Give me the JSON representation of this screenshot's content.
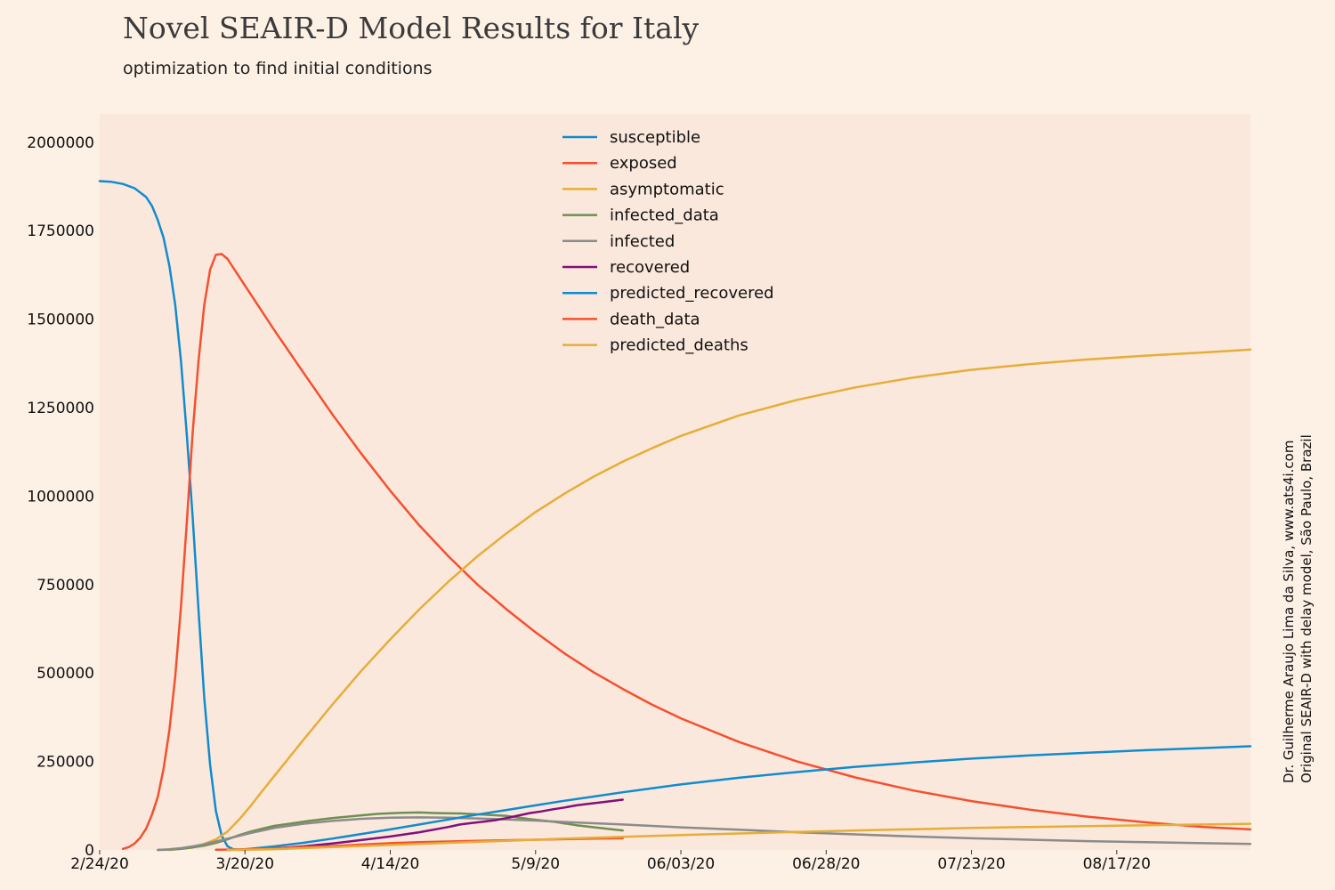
{
  "header": {
    "title": "Novel SEAIR-D Model Results for Italy",
    "subtitle": "optimization to find initial conditions"
  },
  "credit": {
    "line1": "Dr. Guilherme Araujo Lima da Silva, www.ats4i.com",
    "line2": "Original SEAIR-D with delay model, São Paulo, Brazil"
  },
  "chart_data": {
    "type": "line",
    "ylim": [
      0,
      2080000
    ],
    "xlim": [
      0,
      198
    ],
    "xstart": "2/24/20",
    "y_ticks": [
      0,
      250000,
      500000,
      750000,
      1000000,
      1250000,
      1500000,
      1750000,
      2000000
    ],
    "x_ticks": [
      {
        "x": 0,
        "label": "2/24/20"
      },
      {
        "x": 25,
        "label": "3/20/20"
      },
      {
        "x": 50,
        "label": "4/14/20"
      },
      {
        "x": 75,
        "label": "5/9/20"
      },
      {
        "x": 100,
        "label": "06/03/20"
      },
      {
        "x": 125,
        "label": "06/28/20"
      },
      {
        "x": 150,
        "label": "07/23/20"
      },
      {
        "x": 175,
        "label": "08/17/20"
      }
    ],
    "legend_position": "top-center",
    "grid": false,
    "plot_background": "#fbe8dc",
    "series": [
      {
        "name": "susceptible",
        "color": "#118bcf",
        "x": [
          0,
          2,
          4,
          6,
          8,
          9,
          10,
          11,
          12,
          13,
          14,
          15,
          16,
          17,
          18,
          19,
          20,
          21,
          22,
          23,
          24,
          25
        ],
        "y": [
          1890000,
          1888000,
          1882000,
          1870000,
          1845000,
          1820000,
          1780000,
          1730000,
          1650000,
          1540000,
          1380000,
          1170000,
          940000,
          680000,
          430000,
          240000,
          110000,
          40000,
          10000,
          2000,
          400,
          100
        ]
      },
      {
        "name": "exposed",
        "color": "#f4502f",
        "x": [
          4,
          5,
          6,
          7,
          8,
          9,
          10,
          11,
          12,
          13,
          14,
          15,
          16,
          17,
          18,
          19,
          20,
          21,
          22,
          23,
          24,
          27,
          30,
          35,
          40,
          45,
          50,
          55,
          60,
          65,
          70,
          75,
          80,
          85,
          90,
          95,
          100,
          110,
          120,
          130,
          140,
          150,
          160,
          170,
          180,
          190,
          198
        ],
        "y": [
          3000,
          8000,
          18000,
          35000,
          60000,
          100000,
          150000,
          230000,
          340000,
          490000,
          690000,
          930000,
          1180000,
          1380000,
          1540000,
          1640000,
          1682000,
          1684000,
          1670000,
          1645000,
          1620000,
          1545000,
          1470000,
          1350000,
          1232000,
          1120000,
          1015000,
          917000,
          830000,
          750000,
          680000,
          615000,
          555000,
          502000,
          455000,
          411000,
          372000,
          305000,
          250000,
          205000,
          168000,
          138000,
          114000,
          94000,
          78000,
          65000,
          58000
        ]
      },
      {
        "name": "asymptomatic",
        "color": "#e5ae38",
        "x": [
          12,
          14,
          16,
          18,
          20,
          22,
          24,
          26,
          28,
          30,
          35,
          40,
          45,
          50,
          55,
          60,
          65,
          70,
          75,
          80,
          85,
          90,
          95,
          100,
          110,
          120,
          130,
          140,
          150,
          160,
          170,
          180,
          190,
          198
        ],
        "y": [
          0,
          3000,
          8000,
          17000,
          30000,
          52000,
          86000,
          125000,
          167000,
          208000,
          310000,
          410000,
          506000,
          595000,
          680000,
          758000,
          830000,
          895000,
          955000,
          1007000,
          1055000,
          1097000,
          1135000,
          1170000,
          1228000,
          1272000,
          1307000,
          1335000,
          1357000,
          1373000,
          1386000,
          1397000,
          1406000,
          1414000
        ]
      },
      {
        "name": "infected_data",
        "color": "#6d904f",
        "x": [
          10,
          12,
          14,
          16,
          18,
          20,
          22,
          24,
          26,
          28,
          30,
          33,
          36,
          40,
          44,
          48,
          52,
          55,
          58,
          62,
          66,
          70,
          74,
          78,
          82,
          86,
          90
        ],
        "y": [
          0,
          1000,
          3000,
          7000,
          12000,
          20000,
          30000,
          42000,
          52000,
          60000,
          68000,
          75000,
          82000,
          90000,
          96000,
          102000,
          105000,
          106000,
          104000,
          103000,
          100000,
          96000,
          87000,
          80000,
          70000,
          62000,
          55000
        ]
      },
      {
        "name": "infected",
        "color": "#8b8b8b",
        "x": [
          10,
          12,
          14,
          16,
          18,
          20,
          22,
          24,
          26,
          28,
          30,
          35,
          40,
          45,
          50,
          55,
          60,
          65,
          70,
          75,
          80,
          90,
          100,
          110,
          120,
          130,
          140,
          150,
          160,
          170,
          180,
          190,
          198
        ],
        "y": [
          0,
          2000,
          5000,
          10000,
          16000,
          24000,
          32000,
          40000,
          48000,
          55000,
          62000,
          74000,
          82000,
          88000,
          91000,
          92000,
          91000,
          89000,
          86000,
          83000,
          79000,
          72000,
          64000,
          57000,
          50000,
          44000,
          38000,
          33000,
          29000,
          25000,
          22000,
          19000,
          17000
        ]
      },
      {
        "name": "recovered",
        "color": "#810f7c",
        "x": [
          30,
          35,
          40,
          45,
          50,
          55,
          60,
          62,
          64,
          66,
          68,
          70,
          72,
          74,
          76,
          78,
          80,
          82,
          84,
          86,
          88,
          90
        ],
        "y": [
          4000,
          10000,
          18000,
          28000,
          38000,
          50000,
          65000,
          72000,
          76000,
          80000,
          84000,
          90000,
          97000,
          104000,
          109000,
          115000,
          120000,
          126000,
          130000,
          134000,
          138000,
          142000
        ]
      },
      {
        "name": "predicted_recovered",
        "color": "#118bcf",
        "x": [
          22,
          25,
          30,
          35,
          40,
          45,
          50,
          55,
          60,
          65,
          70,
          75,
          80,
          85,
          90,
          95,
          100,
          110,
          120,
          130,
          140,
          150,
          160,
          170,
          180,
          190,
          198
        ],
        "y": [
          0,
          2000,
          10000,
          20000,
          32000,
          45000,
          58000,
          72000,
          86000,
          100000,
          113000,
          126000,
          139000,
          151000,
          163000,
          174000,
          185000,
          204000,
          220000,
          235000,
          247000,
          258000,
          267000,
          275000,
          282000,
          288000,
          293000
        ]
      },
      {
        "name": "death_data",
        "color": "#f4502f",
        "x": [
          20,
          25,
          30,
          35,
          40,
          45,
          50,
          55,
          60,
          65,
          70,
          75,
          80,
          85,
          90
        ],
        "y": [
          500,
          2000,
          5000,
          8000,
          11000,
          15000,
          19000,
          22000,
          24000,
          26000,
          27500,
          29000,
          30500,
          32000,
          33000
        ]
      },
      {
        "name": "predicted_deaths",
        "color": "#e5ae38",
        "x": [
          22,
          25,
          30,
          35,
          40,
          45,
          50,
          55,
          60,
          65,
          70,
          75,
          80,
          85,
          90,
          95,
          100,
          110,
          120,
          130,
          140,
          150,
          160,
          170,
          180,
          190,
          198
        ],
        "y": [
          0,
          500,
          2000,
          5000,
          8000,
          11000,
          14000,
          17000,
          20000,
          23000,
          26000,
          29000,
          32000,
          34500,
          37000,
          39500,
          42000,
          46500,
          51000,
          55000,
          58500,
          62000,
          65000,
          67500,
          70000,
          72000,
          74000
        ]
      }
    ]
  }
}
